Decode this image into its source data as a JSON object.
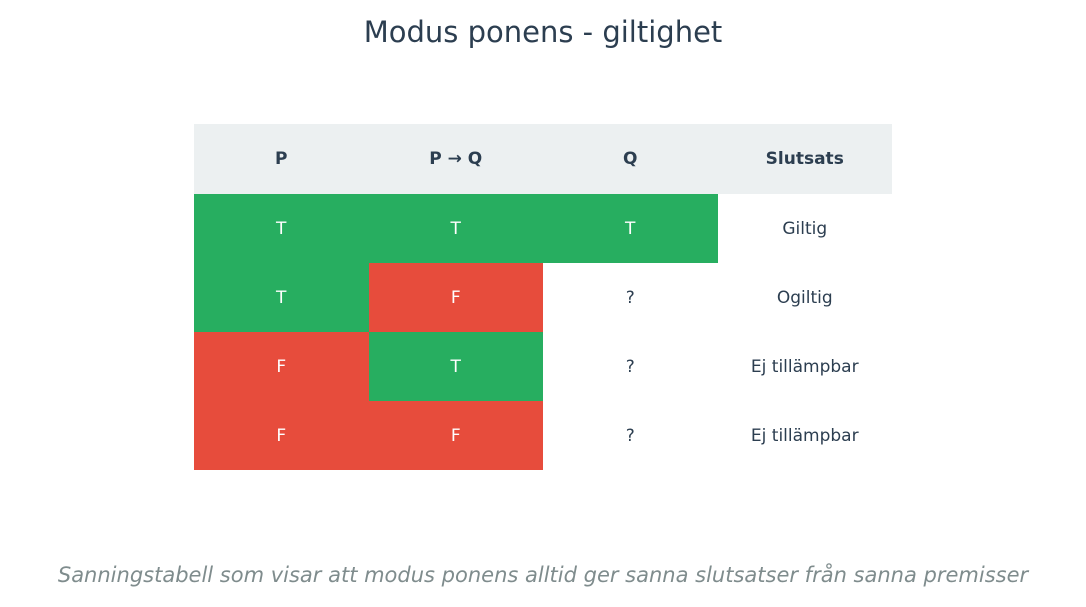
{
  "title": "Modus ponens - giltighet",
  "table": {
    "headers": [
      "P",
      "P → Q",
      "Q",
      "Slutsats"
    ],
    "rows": [
      {
        "p": "T",
        "pq": "T",
        "q": "T",
        "slutsats": "Giltig"
      },
      {
        "p": "T",
        "pq": "F",
        "q": "?",
        "slutsats": "Ogiltig"
      },
      {
        "p": "F",
        "pq": "T",
        "q": "?",
        "slutsats": "Ej tillämpbar"
      },
      {
        "p": "F",
        "pq": "F",
        "q": "?",
        "slutsats": "Ej tillämpbar"
      }
    ]
  },
  "colors": {
    "true": "#27ae60",
    "false": "#e74c3c",
    "header_bg": "#ecf0f1",
    "text": "#2c3e50",
    "caption": "#7f8c8d"
  },
  "caption": "Sanningstabell som visar att modus ponens alltid ger sanna slutsatser från sanna premisser"
}
